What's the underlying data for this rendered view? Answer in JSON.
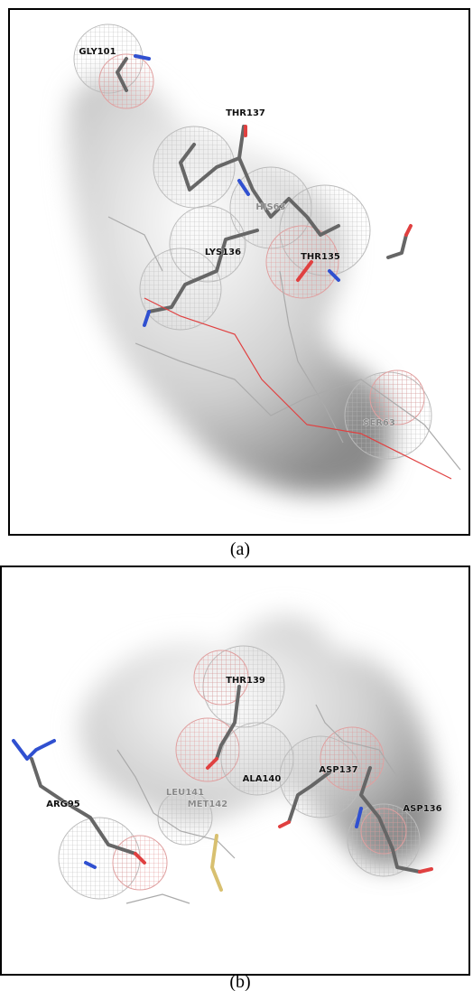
{
  "panels": [
    {
      "caption": "(a)",
      "labels": [
        "GLY101",
        "THR137",
        "HIS63",
        "LYS136",
        "THR135",
        "SER63"
      ]
    },
    {
      "caption": "(b)",
      "labels": [
        "THR139",
        "ARG95",
        "ALA140",
        "ASP137",
        "ASP136",
        "LEU141",
        "MET142"
      ]
    }
  ]
}
